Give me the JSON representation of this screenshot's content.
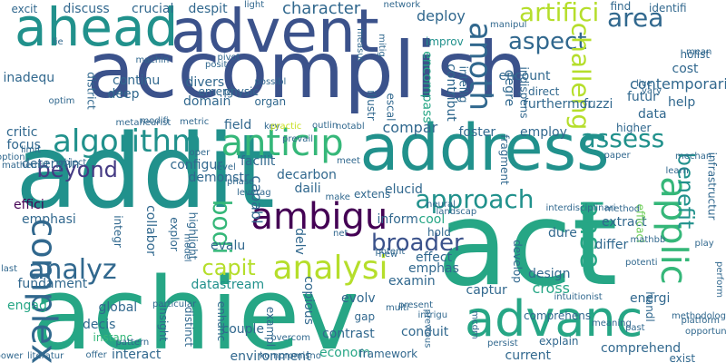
{
  "palette": {
    "blue": "#3b528b",
    "steel": "#31688e",
    "teal": "#21918c",
    "sea": "#26a685",
    "green": "#35b779",
    "lime": "#6ece58",
    "yellow": "#b5de2b",
    "purple": "#482878",
    "dark": "#440154",
    "indigo": "#443a83",
    "pale": "#c8e020"
  },
  "words": [
    {
      "text": "accomplish",
      "color": "blue"
    },
    {
      "text": "addit",
      "color": "teal"
    },
    {
      "text": "achiev",
      "color": "sea"
    },
    {
      "text": "act",
      "color": "sea"
    },
    {
      "text": "address",
      "color": "teal"
    },
    {
      "text": "advent",
      "color": "blue"
    },
    {
      "text": "ahead",
      "color": "teal"
    },
    {
      "text": "advanc",
      "color": "sea"
    },
    {
      "text": "algorithm",
      "color": "teal"
    },
    {
      "text": "anticip",
      "color": "green"
    },
    {
      "text": "applic",
      "color": "green"
    },
    {
      "text": "complex",
      "color": "steel"
    },
    {
      "text": "ambigu",
      "color": "dark"
    },
    {
      "text": "analysi",
      "color": "yellow"
    },
    {
      "text": "approach",
      "color": "teal"
    },
    {
      "text": "analyz",
      "color": "steel"
    },
    {
      "text": "assess",
      "color": "teal"
    },
    {
      "text": "area",
      "color": "steel"
    },
    {
      "text": "artifici",
      "color": "yellow"
    },
    {
      "text": "aspect",
      "color": "steel"
    },
    {
      "text": "anoth",
      "color": "steel"
    },
    {
      "text": "broader",
      "color": "blue"
    },
    {
      "text": "beyond",
      "color": "indigo"
    },
    {
      "text": "capit",
      "color": "yellow"
    },
    {
      "text": "bodi",
      "color": "green"
    },
    {
      "text": "benefit",
      "color": "teal"
    },
    {
      "text": "base",
      "color": "sea"
    },
    {
      "text": "challeng",
      "color": "yellow"
    },
    {
      "text": "character",
      "color": "steel"
    },
    {
      "text": "deploy",
      "color": "steel"
    },
    {
      "text": "improv",
      "color": "teal"
    },
    {
      "text": "crucial",
      "color": "steel"
    },
    {
      "text": "despit",
      "color": "steel"
    },
    {
      "text": "discuss",
      "color": "steel"
    },
    {
      "text": "excit",
      "color": "steel"
    },
    {
      "text": "inadequ",
      "color": "steel"
    },
    {
      "text": "continu",
      "color": "steel"
    },
    {
      "text": "divers",
      "color": "steel"
    },
    {
      "text": "emerg",
      "color": "steel"
    },
    {
      "text": "deep",
      "color": "steel"
    },
    {
      "text": "domain",
      "color": "steel"
    },
    {
      "text": "district",
      "color": "steel"
    },
    {
      "text": "critic",
      "color": "steel"
    },
    {
      "text": "focus",
      "color": "steel"
    },
    {
      "text": "determin",
      "color": "steel"
    },
    {
      "text": "configur",
      "color": "steel"
    },
    {
      "text": "facilit",
      "color": "steel"
    },
    {
      "text": "demonstr",
      "color": "steel"
    },
    {
      "text": "decarbon",
      "color": "steel"
    },
    {
      "text": "daili",
      "color": "steel"
    },
    {
      "text": "elucid",
      "color": "steel"
    },
    {
      "text": "capabl",
      "color": "steel"
    },
    {
      "text": "effici",
      "color": "dark"
    },
    {
      "text": "emphasi",
      "color": "steel"
    },
    {
      "text": "integr",
      "color": "steel"
    },
    {
      "text": "collabor",
      "color": "steel"
    },
    {
      "text": "explor",
      "color": "steel"
    },
    {
      "text": "highlight",
      "color": "steel"
    },
    {
      "text": "evalu",
      "color": "steel"
    },
    {
      "text": "delv",
      "color": "steel"
    },
    {
      "text": "cool",
      "color": "sea"
    },
    {
      "text": "effect",
      "color": "steel"
    },
    {
      "text": "emphas",
      "color": "steel"
    },
    {
      "text": "captur",
      "color": "steel"
    },
    {
      "text": "design",
      "color": "steel"
    },
    {
      "text": "cross",
      "color": "sea"
    },
    {
      "text": "develop",
      "color": "steel"
    },
    {
      "text": "dure",
      "color": "steel"
    },
    {
      "text": "differ",
      "color": "steel"
    },
    {
      "text": "extract",
      "color": "steel"
    },
    {
      "text": "datastream",
      "color": "teal"
    },
    {
      "text": "fundament",
      "color": "steel"
    },
    {
      "text": "engag",
      "color": "sea"
    },
    {
      "text": "global",
      "color": "steel"
    },
    {
      "text": "decis",
      "color": "steel"
    },
    {
      "text": "instanc",
      "color": "green"
    },
    {
      "text": "insight",
      "color": "steel"
    },
    {
      "text": "distinct",
      "color": "steel"
    },
    {
      "text": "enhanc",
      "color": "steel"
    },
    {
      "text": "exampl",
      "color": "steel"
    },
    {
      "text": "couple",
      "color": "steel"
    },
    {
      "text": "copious",
      "color": "steel"
    },
    {
      "text": "interact",
      "color": "steel"
    },
    {
      "text": "environment",
      "color": "steel"
    },
    {
      "text": "econom",
      "color": "sea"
    },
    {
      "text": "contrast",
      "color": "steel"
    },
    {
      "text": "gap",
      "color": "steel"
    },
    {
      "text": "framework",
      "color": "steel"
    },
    {
      "text": "conduit",
      "color": "steel"
    },
    {
      "text": "current",
      "color": "steel"
    },
    {
      "text": "comprehens",
      "color": "steel"
    },
    {
      "text": "comprehend",
      "color": "steel"
    },
    {
      "text": "explain",
      "color": "steel"
    },
    {
      "text": "exist",
      "color": "steel"
    },
    {
      "text": "energi",
      "color": "steel"
    },
    {
      "text": "compar",
      "color": "steel"
    },
    {
      "text": "employ",
      "color": "steel"
    },
    {
      "text": "foster",
      "color": "steel"
    },
    {
      "text": "higher",
      "color": "steel"
    },
    {
      "text": "encount",
      "color": "steel"
    },
    {
      "text": "direct",
      "color": "steel"
    },
    {
      "text": "furthermor",
      "color": "steel"
    },
    {
      "text": "identifi",
      "color": "steel"
    },
    {
      "text": "find",
      "color": "steel"
    },
    {
      "text": "holist",
      "color": "steel"
    },
    {
      "text": "cost",
      "color": "steel"
    },
    {
      "text": "contemporari",
      "color": "steel"
    },
    {
      "text": "help",
      "color": "steel"
    },
    {
      "text": "futur",
      "color": "steel"
    },
    {
      "text": "data",
      "color": "steel"
    },
    {
      "text": "fuzzi",
      "color": "steel"
    },
    {
      "text": "indispens",
      "color": "steel"
    },
    {
      "text": "intellig",
      "color": "steel"
    },
    {
      "text": "contribut",
      "color": "steel"
    },
    {
      "text": "encompass",
      "color": "sea"
    },
    {
      "text": "degre",
      "color": "steel"
    },
    {
      "text": "fragment",
      "color": "steel"
    },
    {
      "text": "infrastructur",
      "color": "steel"
    },
    {
      "text": "efficaci",
      "color": "lime"
    },
    {
      "text": "handl",
      "color": "steel"
    },
    {
      "text": "hold",
      "color": "steel"
    },
    {
      "text": "inform",
      "color": "steel"
    },
    {
      "text": "extens",
      "color": "steel"
    },
    {
      "text": "examin",
      "color": "steel"
    },
    {
      "text": "evolv",
      "color": "steel"
    },
    {
      "text": "field",
      "color": "steel"
    },
    {
      "text": "escal",
      "color": "steel"
    },
    {
      "text": "illustr",
      "color": "steel"
    },
    {
      "text": "organ",
      "color": "steel"
    },
    {
      "text": "physic",
      "color": "steel"
    },
    {
      "text": "manipul",
      "color": "steel"
    },
    {
      "text": "network",
      "color": "steel"
    },
    {
      "text": "light",
      "color": "steel"
    },
    {
      "text": "machin",
      "color": "steel"
    },
    {
      "text": "pivot",
      "color": "steel"
    },
    {
      "text": "posit",
      "color": "steel"
    },
    {
      "text": "possibl",
      "color": "steel"
    },
    {
      "text": "optim",
      "color": "steel"
    },
    {
      "text": "metric",
      "color": "steel"
    },
    {
      "text": "metaheurist",
      "color": "steel"
    },
    {
      "text": "modifi",
      "color": "steel"
    },
    {
      "text": "outlin",
      "color": "steel"
    },
    {
      "text": "notabl",
      "color": "steel"
    },
    {
      "text": "key",
      "color": "steel"
    },
    {
      "text": "practic",
      "color": "pale"
    },
    {
      "text": "prevail",
      "color": "steel"
    },
    {
      "text": "meet",
      "color": "steel"
    },
    {
      "text": "level",
      "color": "steel"
    },
    {
      "text": "oper",
      "color": "steel"
    },
    {
      "text": "option",
      "color": "steel"
    },
    {
      "text": "limit",
      "color": "steel"
    },
    {
      "text": "mathemat",
      "color": "steel"
    },
    {
      "text": "object",
      "color": "steel"
    },
    {
      "text": "phase",
      "color": "steel"
    },
    {
      "text": "make",
      "color": "steel"
    },
    {
      "text": "leverag",
      "color": "steel"
    },
    {
      "text": "particular",
      "color": "steel"
    },
    {
      "text": "model",
      "color": "steel"
    },
    {
      "text": "net",
      "color": "steel"
    },
    {
      "text": "potent",
      "color": "steel"
    },
    {
      "text": "neural",
      "color": "steel"
    },
    {
      "text": "landscap",
      "color": "steel"
    },
    {
      "text": "interdisciplinari",
      "color": "steel"
    },
    {
      "text": "method",
      "color": "steel"
    },
    {
      "text": "mathbb",
      "color": "steel"
    },
    {
      "text": "play",
      "color": "steel"
    },
    {
      "text": "paper",
      "color": "steel"
    },
    {
      "text": "mechan",
      "color": "steel"
    },
    {
      "text": "learn",
      "color": "steel"
    },
    {
      "text": "present",
      "color": "steel"
    },
    {
      "text": "intrigu",
      "color": "steel"
    },
    {
      "text": "multi",
      "color": "steel"
    },
    {
      "text": "previous",
      "color": "steel"
    },
    {
      "text": "meaning",
      "color": "steel"
    },
    {
      "text": "intuitionist",
      "color": "steel"
    },
    {
      "text": "methodolog",
      "color": "steel"
    },
    {
      "text": "potenti",
      "color": "steel"
    },
    {
      "text": "perform",
      "color": "steel"
    },
    {
      "text": "platform",
      "color": "steel"
    },
    {
      "text": "opportun",
      "color": "steel"
    },
    {
      "text": "past",
      "color": "steel"
    },
    {
      "text": "mcdm",
      "color": "steel"
    },
    {
      "text": "persist",
      "color": "steel"
    },
    {
      "text": "offer",
      "color": "steel"
    },
    {
      "text": "overcom",
      "color": "steel"
    },
    {
      "text": "kompromisno",
      "color": "steel"
    },
    {
      "text": "last",
      "color": "steel"
    },
    {
      "text": "pattern",
      "color": "steel"
    },
    {
      "text": "power",
      "color": "steel"
    },
    {
      "text": "literatur",
      "color": "steel"
    },
    {
      "text": "new",
      "color": "steel"
    },
    {
      "text": "lie",
      "color": "steel"
    },
    {
      "text": "live",
      "color": "steel"
    },
    {
      "text": "measur",
      "color": "steel"
    },
    {
      "text": "mitig",
      "color": "steel"
    },
    {
      "text": "mean",
      "color": "steel"
    },
    {
      "text": "vary",
      "color": "steel"
    }
  ]
}
